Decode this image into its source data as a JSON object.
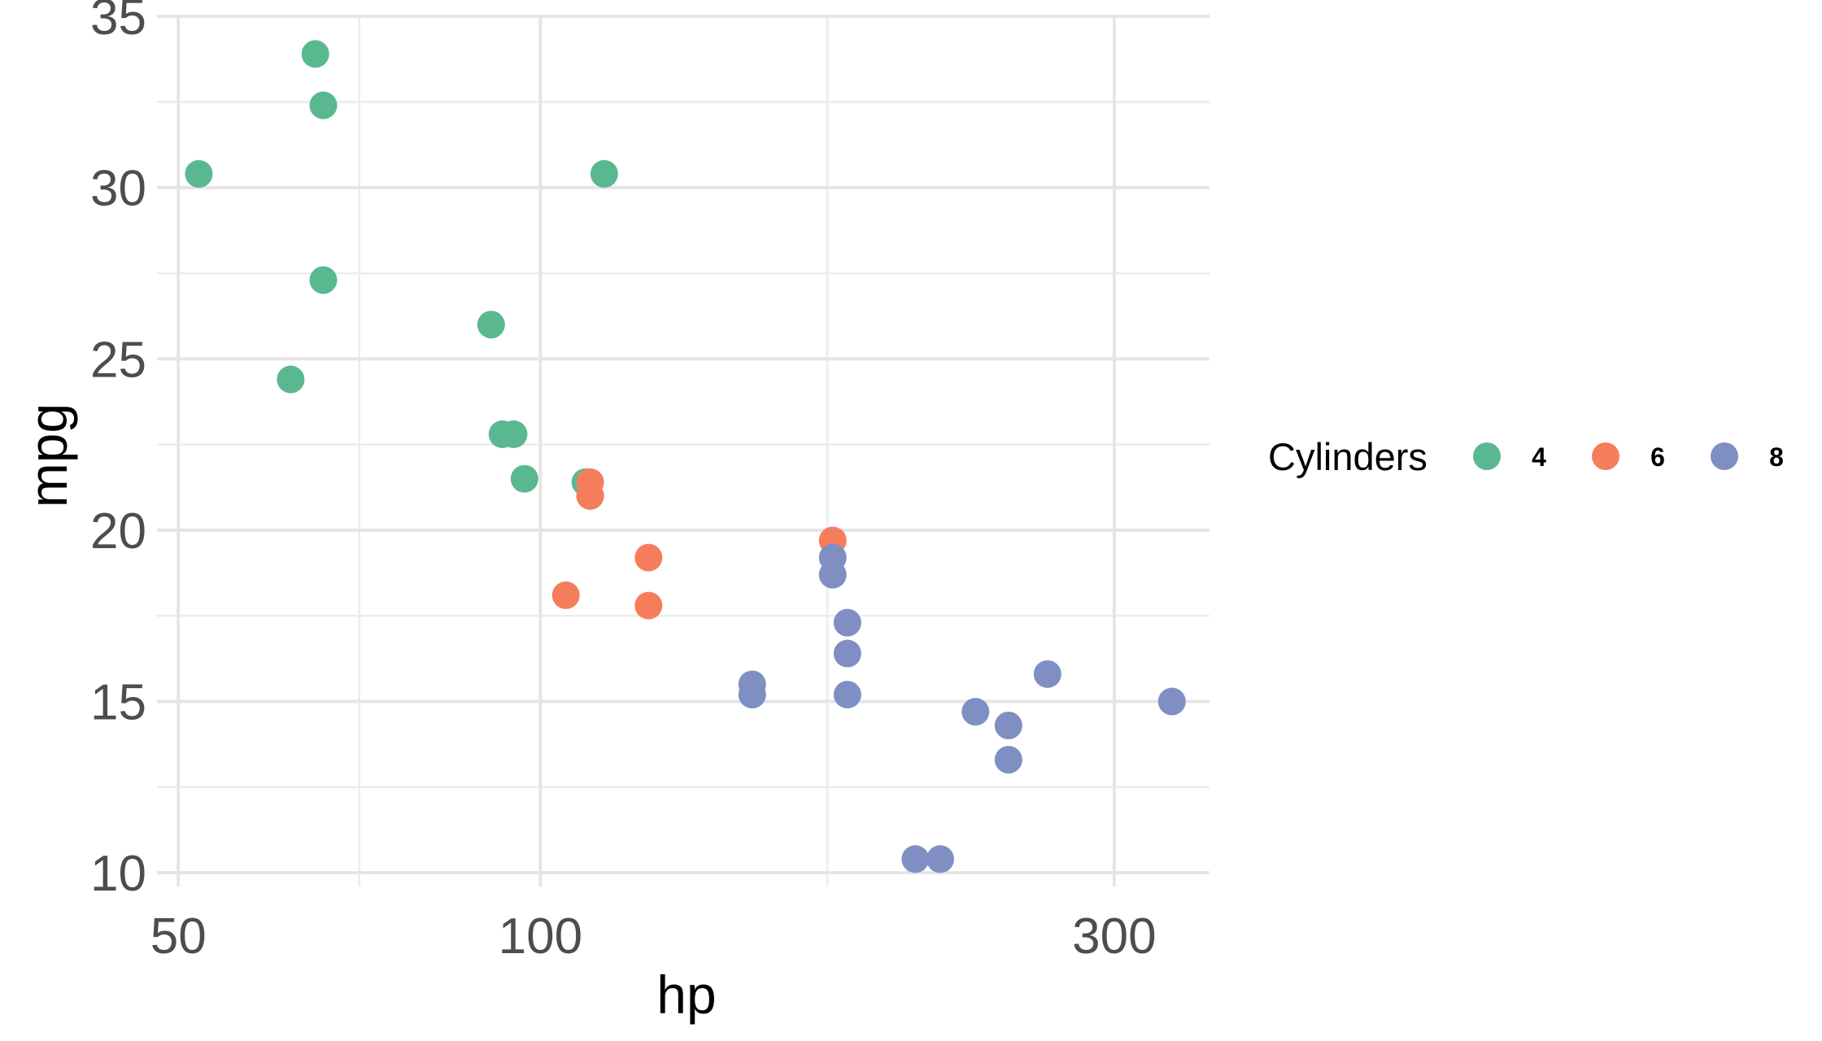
{
  "chart_data": {
    "type": "scatter",
    "title": "",
    "xlabel": "hp",
    "ylabel": "mpg",
    "xscale": "log10",
    "xlim": [
      48,
      360
    ],
    "ylim": [
      9.6,
      35
    ],
    "x_ticks": [
      50,
      100,
      300
    ],
    "x_minor_ticks": [
      70.7,
      173.2
    ],
    "y_ticks": [
      10,
      15,
      20,
      25,
      30,
      35
    ],
    "y_minor_ticks": [
      12.5,
      17.5,
      22.5,
      27.5,
      32.5
    ],
    "grid": true,
    "legend": {
      "title": "Cylinders",
      "position": "right",
      "entries": [
        {
          "label": "4",
          "color": "#5ab890"
        },
        {
          "label": "6",
          "color": "#f47e5c"
        },
        {
          "label": "8",
          "color": "#7f8fc4"
        }
      ]
    },
    "series": [
      {
        "name": "4",
        "color": "#5ab890",
        "points": [
          {
            "x": 93,
            "y": 22.8
          },
          {
            "x": 62,
            "y": 24.4
          },
          {
            "x": 95,
            "y": 22.8
          },
          {
            "x": 66,
            "y": 32.4
          },
          {
            "x": 52,
            "y": 30.4
          },
          {
            "x": 65,
            "y": 33.9
          },
          {
            "x": 97,
            "y": 21.5
          },
          {
            "x": 66,
            "y": 27.3
          },
          {
            "x": 91,
            "y": 26.0
          },
          {
            "x": 113,
            "y": 30.4
          },
          {
            "x": 109,
            "y": 21.4
          }
        ]
      },
      {
        "name": "6",
        "color": "#f47e5c",
        "points": [
          {
            "x": 110,
            "y": 21.0
          },
          {
            "x": 110,
            "y": 21.4
          },
          {
            "x": 110,
            "y": 21.0
          },
          {
            "x": 105,
            "y": 18.1
          },
          {
            "x": 123,
            "y": 19.2
          },
          {
            "x": 123,
            "y": 17.8
          },
          {
            "x": 175,
            "y": 19.7
          }
        ]
      },
      {
        "name": "8",
        "color": "#7f8fc4",
        "points": [
          {
            "x": 175,
            "y": 18.7
          },
          {
            "x": 245,
            "y": 14.3
          },
          {
            "x": 180,
            "y": 16.4
          },
          {
            "x": 180,
            "y": 17.3
          },
          {
            "x": 180,
            "y": 15.2
          },
          {
            "x": 205,
            "y": 10.4
          },
          {
            "x": 215,
            "y": 10.4
          },
          {
            "x": 230,
            "y": 14.7
          },
          {
            "x": 150,
            "y": 15.5
          },
          {
            "x": 150,
            "y": 15.2
          },
          {
            "x": 245,
            "y": 13.3
          },
          {
            "x": 175,
            "y": 19.2
          },
          {
            "x": 264,
            "y": 15.8
          },
          {
            "x": 335,
            "y": 15.0
          }
        ]
      }
    ]
  }
}
